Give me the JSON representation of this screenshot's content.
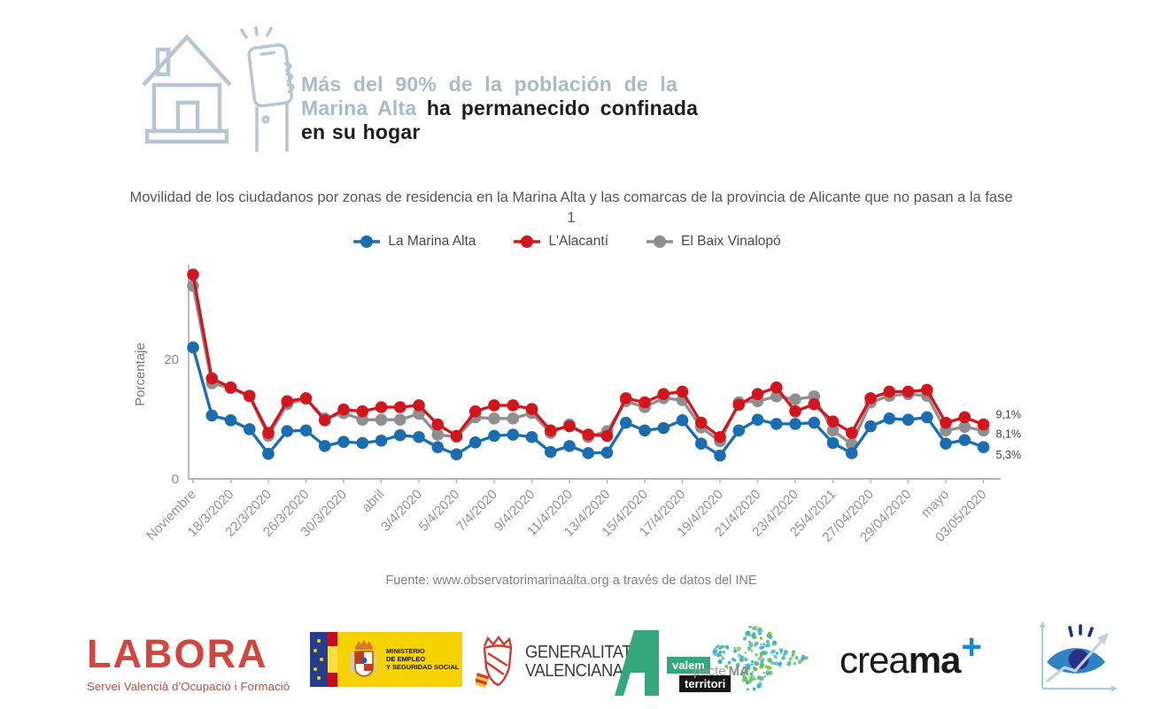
{
  "header": {
    "line1_light": "Más del 90% de la población de la",
    "line2_light": "Marina Alta",
    "line2_dark": "ha permanecido confinada",
    "line3_dark": "en su hogar",
    "icons": [
      "house-icon",
      "phone-in-hand-icon"
    ],
    "accent_color": "#a9bbc9"
  },
  "chart_data": {
    "type": "line",
    "title": "Movilidad de los ciudadanos por zonas de residencia en la Marina Alta y las comarcas de la provincia de Alicante que no pasan a la fase 1",
    "ylabel": "Porcentaje",
    "ylim": [
      0,
      36
    ],
    "y_ticks": [
      20,
      0
    ],
    "grid": false,
    "legend_position": "top-center",
    "x_tick_labels": [
      "Noviembre",
      "18/3/2020",
      "22/3/2020",
      "26/3/2020",
      "30/3/2020",
      "abril",
      "3/4/2020",
      "5/4/2020",
      "7/4/2020",
      "9/4/2020",
      "11/4/2020",
      "13/4/2020",
      "15/4/2020",
      "17/4/2020",
      "19/4/2020",
      "21/4/2020",
      "23/4/2020",
      "25/4/2021",
      "27/04/2020",
      "29/04/2020",
      "mayo",
      "03/05/2020"
    ],
    "series": [
      {
        "name": "La Marina Alta",
        "color": "#1b6db1",
        "end_label": "5,3%",
        "values": [
          22.0,
          10.6,
          9.8,
          8.3,
          4.2,
          8.0,
          8.1,
          5.5,
          6.2,
          6.0,
          6.4,
          7.3,
          7.0,
          5.3,
          4.1,
          6.1,
          7.2,
          7.4,
          7.0,
          4.5,
          5.5,
          4.3,
          4.4,
          9.4,
          8.1,
          8.5,
          9.8,
          5.9,
          3.9,
          8.1,
          9.9,
          9.2,
          9.2,
          9.4,
          6.0,
          4.3,
          8.8,
          10.1,
          9.9,
          10.3,
          5.9,
          6.5,
          5.3
        ]
      },
      {
        "name": "L'Alacantí",
        "color": "#d2161e",
        "end_label": "9,1%",
        "values": [
          34.2,
          16.8,
          15.3,
          13.9,
          7.7,
          13.0,
          13.5,
          9.8,
          11.6,
          11.3,
          12.0,
          12.0,
          12.3,
          9.1,
          7.2,
          11.3,
          12.3,
          12.3,
          11.7,
          8.1,
          8.8,
          7.4,
          7.2,
          13.5,
          12.8,
          14.2,
          14.6,
          9.4,
          7.0,
          12.4,
          14.2,
          15.3,
          11.3,
          12.5,
          9.6,
          7.7,
          13.5,
          14.6,
          14.6,
          14.9,
          9.4,
          10.3,
          9.1
        ]
      },
      {
        "name": "El Baix Vinalopó",
        "color": "#8f8f8f",
        "end_label": "8,1%",
        "values": [
          32.3,
          16.0,
          15.2,
          13.8,
          7.2,
          12.5,
          13.4,
          10.1,
          11.0,
          9.9,
          9.9,
          9.9,
          10.9,
          7.4,
          7.0,
          10.3,
          10.1,
          10.1,
          11.0,
          7.7,
          9.1,
          7.0,
          8.0,
          13.0,
          12.0,
          13.5,
          13.2,
          8.6,
          6.3,
          12.8,
          13.0,
          13.8,
          13.3,
          13.8,
          8.1,
          5.8,
          12.8,
          13.9,
          14.2,
          13.9,
          8.1,
          8.7,
          8.1
        ]
      }
    ]
  },
  "source_line": "Fuente: www.observatorimarinaalta.org a través de datos del INE",
  "footer": {
    "labora": {
      "name": "LABORA",
      "tagline": "Servei Valencià d'Ocupació i Formació",
      "color": "#d4453e"
    },
    "ministerio": {
      "line1": "MINISTERIO",
      "line2": "DE EMPLEO",
      "line3": "Y SEGURIDAD SOCIAL",
      "flag_yellow": "#f6d200",
      "eu_blue": "#273c8c"
    },
    "generalitat": {
      "line1": "GENERALITAT",
      "line2": "VALENCIANA",
      "emblem_color": "#cc3b2f"
    },
    "avalem": {
      "word1": "valem",
      "word2": "territori",
      "green": "#35a77c"
    },
    "pacte": {
      "label_regular": "pacte'",
      "label_bold": "MA",
      "dot_colors": [
        "#7cc242",
        "#3fa9dc",
        "#35b8a5"
      ]
    },
    "creama": {
      "regular": "crea",
      "bold": "ma",
      "plus": "+",
      "plus_color": "#1987d0"
    },
    "observatori": {
      "icon": "eye-trend-logo"
    }
  }
}
